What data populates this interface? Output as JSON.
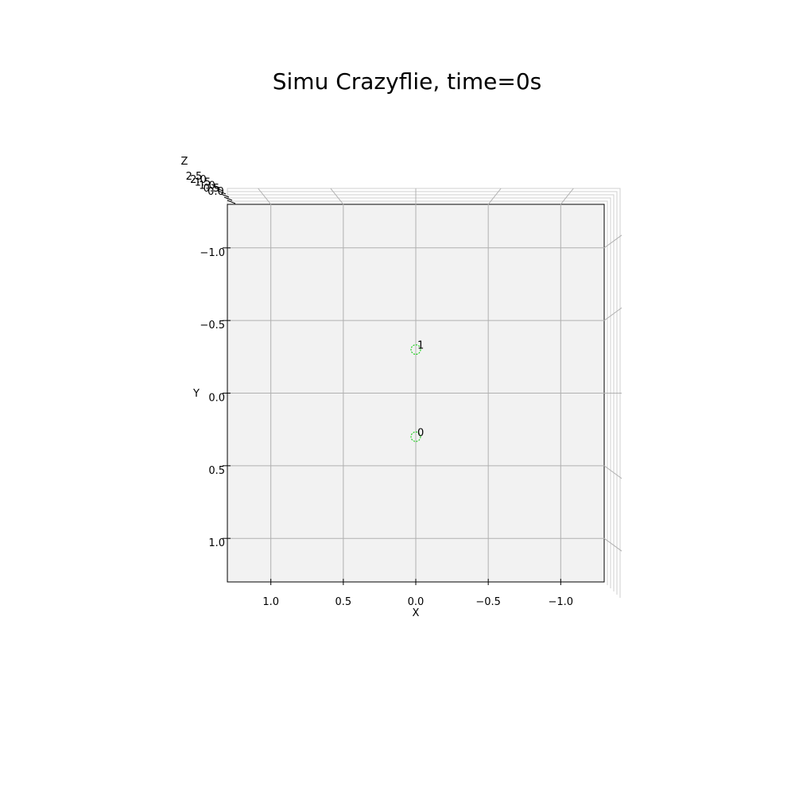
{
  "chart_data": {
    "type": "scatter",
    "projection": "3d-top-view",
    "title": "Simu Crazyflie, time=0s",
    "xlabel": "X",
    "ylabel": "Y",
    "zlabel": "Z",
    "x_ticks": [
      "1.0",
      "0.5",
      "0.0",
      "−0.5",
      "−1.0"
    ],
    "x_tick_values": [
      1.0,
      0.5,
      0.0,
      -0.5,
      -1.0
    ],
    "y_ticks": [
      "−1.0",
      "−0.5",
      "0.0",
      "0.5",
      "1.0"
    ],
    "y_tick_values": [
      -1.0,
      -0.5,
      0.0,
      0.5,
      1.0
    ],
    "z_ticks": [
      "2.5",
      "2.0",
      "1.5",
      "1.0",
      "0.5",
      "0.0"
    ],
    "xlim": [
      1.3,
      -1.3
    ],
    "ylim": [
      -1.3,
      1.3
    ],
    "grid": true,
    "point_color": "#00cc00",
    "pane_color": "#f2f2f2",
    "grid_color": "#b0b0b0",
    "points": [
      {
        "label": "0",
        "x": 0.0,
        "y": 0.3,
        "z": 0.0
      },
      {
        "label": "1",
        "x": 0.0,
        "y": -0.3,
        "z": 0.0
      }
    ]
  }
}
